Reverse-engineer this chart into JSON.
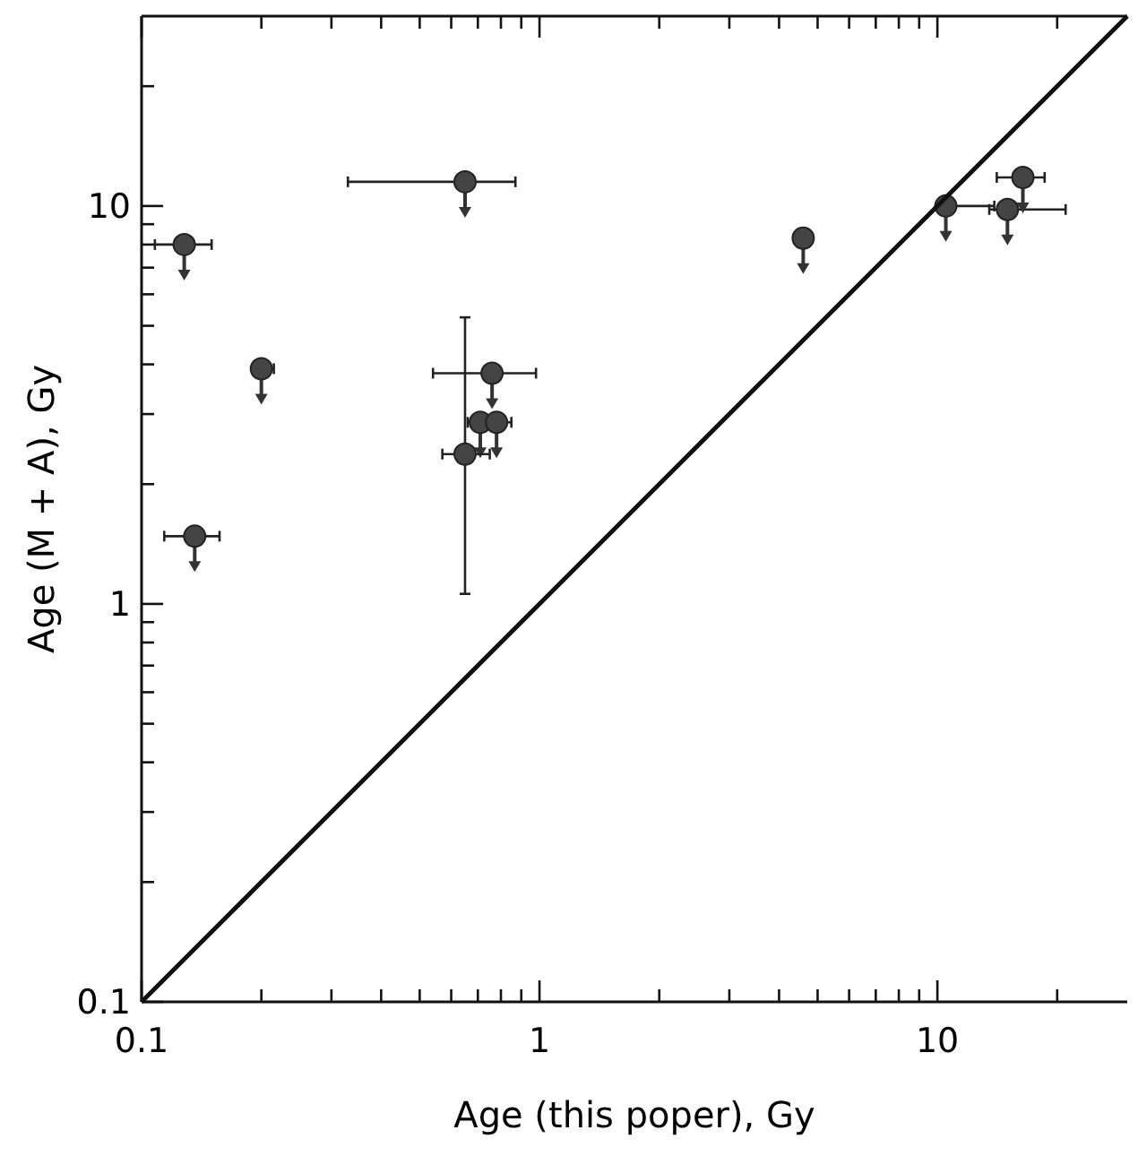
{
  "chart_data": {
    "type": "scatter",
    "xlabel": "Age (this poper), Gy",
    "ylabel": "Age (M + A), Gy",
    "log": "xy",
    "xlim": [
      0.1,
      30
    ],
    "ylim": [
      0.1,
      30
    ],
    "xticks": [
      {
        "value": 0.1,
        "label": "0.1"
      },
      {
        "value": 0.2,
        "label": null
      },
      {
        "value": 0.3,
        "label": null
      },
      {
        "value": 0.4,
        "label": null
      },
      {
        "value": 0.5,
        "label": null
      },
      {
        "value": 0.6,
        "label": null
      },
      {
        "value": 0.7,
        "label": null
      },
      {
        "value": 0.8,
        "label": null
      },
      {
        "value": 0.9,
        "label": null
      },
      {
        "value": 1,
        "label": "1"
      },
      {
        "value": 2,
        "label": null
      },
      {
        "value": 3,
        "label": null
      },
      {
        "value": 4,
        "label": null
      },
      {
        "value": 5,
        "label": null
      },
      {
        "value": 6,
        "label": null
      },
      {
        "value": 7,
        "label": null
      },
      {
        "value": 8,
        "label": null
      },
      {
        "value": 9,
        "label": null
      },
      {
        "value": 10,
        "label": "10"
      },
      {
        "value": 20,
        "label": null
      }
    ],
    "yticks": [
      {
        "value": 0.1,
        "label": "0.1"
      },
      {
        "value": 0.2,
        "label": null
      },
      {
        "value": 0.3,
        "label": null
      },
      {
        "value": 0.4,
        "label": null
      },
      {
        "value": 0.5,
        "label": null
      },
      {
        "value": 0.6,
        "label": null
      },
      {
        "value": 0.7,
        "label": null
      },
      {
        "value": 0.8,
        "label": null
      },
      {
        "value": 0.9,
        "label": null
      },
      {
        "value": 1,
        "label": "1"
      },
      {
        "value": 2,
        "label": null
      },
      {
        "value": 3,
        "label": null
      },
      {
        "value": 4,
        "label": null
      },
      {
        "value": 5,
        "label": null
      },
      {
        "value": 6,
        "label": null
      },
      {
        "value": 7,
        "label": null
      },
      {
        "value": 8,
        "label": null
      },
      {
        "value": 9,
        "label": null
      },
      {
        "value": 10,
        "label": "10"
      },
      {
        "value": 20,
        "label": null
      }
    ],
    "grid": false,
    "marker": "circle",
    "series": [
      {
        "color": "#444444",
        "x": [
          0.128,
          0.2,
          0.136,
          0.65,
          0.76,
          0.71,
          0.78,
          4.6,
          10.5,
          15,
          16.4
        ],
        "values": [
          8,
          3.9,
          1.48,
          11.5,
          3.8,
          2.86,
          2.86,
          8.3,
          10,
          9.8,
          11.8
        ],
        "xerrors": [
          [
            0.108,
            0.15
          ],
          [
            0.19,
            0.215
          ],
          [
            0.114,
            0.157
          ],
          [
            0.33,
            0.87
          ],
          [
            0.54,
            0.98
          ],
          [
            0.66,
            0.74
          ],
          [
            0.74,
            0.85
          ],
          null,
          [
            10.5,
            13.9
          ],
          [
            13.5,
            21
          ],
          [
            14.1,
            18.6
          ]
        ]
      },
      {
        "color": "#444444",
        "x": [
          0.65
        ],
        "values": [
          2.38
        ],
        "xerrors": [
          [
            0.57,
            0.75
          ]
        ],
        "errors": [
          [
            1.06,
            5.25
          ]
        ]
      },
      {
        "type": "line",
        "color": "#111111",
        "line_style": "solid",
        "marker": "none",
        "x": [
          0.1,
          30
        ],
        "values": [
          0.1,
          30
        ]
      }
    ]
  }
}
